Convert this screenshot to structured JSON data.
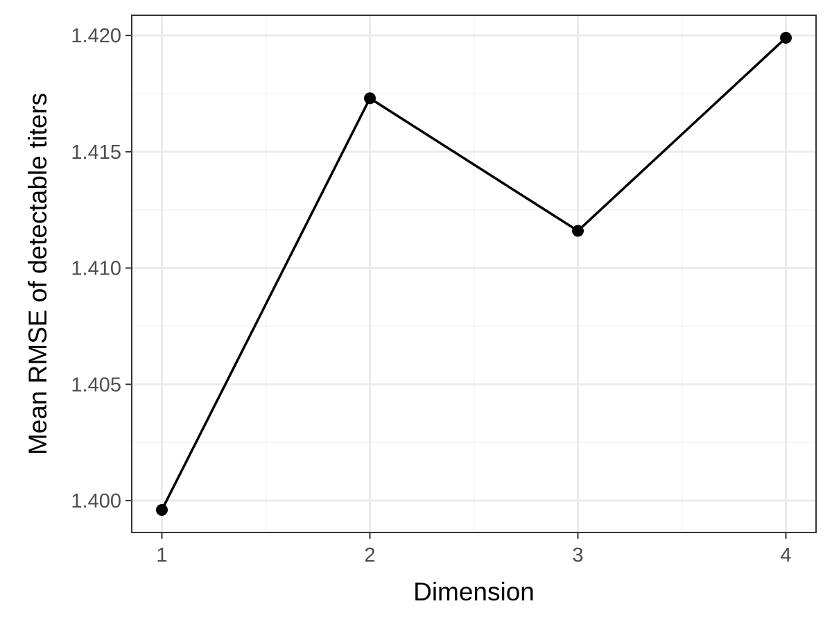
{
  "chart_data": {
    "type": "line",
    "title": "",
    "xlabel": "Dimension",
    "ylabel": "Mean RMSE of detectable titers",
    "x": [
      1,
      2,
      3,
      4
    ],
    "series": [
      {
        "values": [
          1.3996,
          1.4173,
          1.4116,
          1.4199
        ]
      }
    ],
    "x_ticks": [
      1,
      2,
      3,
      4
    ],
    "x_tick_labels": [
      "1",
      "2",
      "3",
      "4"
    ],
    "y_ticks": [
      1.4,
      1.405,
      1.41,
      1.415,
      1.42
    ],
    "y_tick_labels": [
      "1.400",
      "1.405",
      "1.410",
      "1.415",
      "1.420"
    ],
    "xlim": [
      0.855,
      4.145
    ],
    "ylim": [
      1.39863,
      1.42087
    ],
    "grid": true,
    "legend": "none",
    "colors": {
      "line": "#000000",
      "point": "#000000",
      "grid_major": "#ebebeb",
      "grid_minor": "#f3f3f3",
      "panel_border": "#333333",
      "tick_text": "#4d4d4d"
    }
  }
}
